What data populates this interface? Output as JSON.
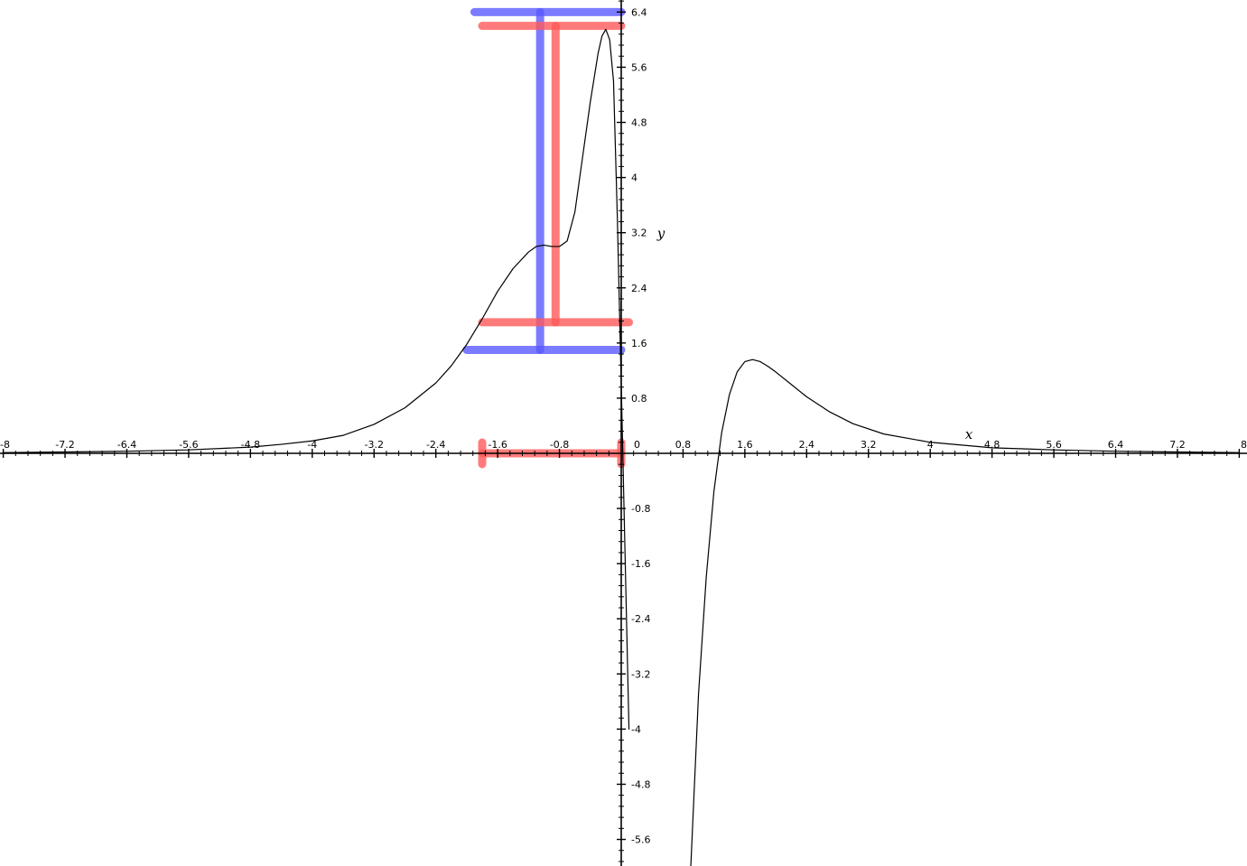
{
  "chart_data": {
    "type": "line",
    "title": "",
    "xlabel": "x",
    "ylabel": "y",
    "xlim": [
      -8,
      8
    ],
    "ylim": [
      -5.95,
      6.55
    ],
    "grid": false,
    "x_tick_labels": [
      "-8",
      "-7.2",
      "-6.4",
      "-5.6",
      "-4.8",
      "-4",
      "-3.2",
      "-2.4",
      "-1.6",
      "-0.8",
      "0",
      "0.8",
      "1.6",
      "2.4",
      "3.2",
      "4",
      "4.8",
      "5.6",
      "6.4",
      "7.2",
      "8"
    ],
    "y_tick_labels": [
      "-5.6",
      "-4.8",
      "-4",
      "-3.2",
      "-2.4",
      "-1.6",
      "-0.8",
      "0.8",
      "1.6",
      "2.4",
      "3.2",
      "4",
      "4.8",
      "5.6",
      "6.4"
    ],
    "series": [
      {
        "color": "#000000",
        "x": [
          -8,
          -7.2,
          -6.4,
          -5.6,
          -4.8,
          -4.4,
          -4,
          -3.6,
          -3.2,
          -2.8,
          -2.4,
          -2.2,
          -2,
          -1.8,
          -1.6,
          -1.4,
          -1.2,
          -1.1,
          -1.0,
          -0.9,
          -0.8,
          -0.7,
          -0.6,
          -0.5,
          -0.4,
          -0.3,
          -0.25,
          -0.2,
          -0.15,
          -0.1,
          -0.05,
          0.0,
          0.05,
          0.1
        ],
        "y": [
          0.01,
          0.02,
          0.03,
          0.05,
          0.09,
          0.13,
          0.18,
          0.26,
          0.42,
          0.66,
          1.02,
          1.27,
          1.58,
          1.95,
          2.35,
          2.68,
          2.92,
          3.0,
          3.02,
          3.0,
          3.0,
          3.08,
          3.5,
          4.3,
          5.1,
          5.8,
          6.05,
          6.15,
          6.0,
          5.4,
          3.4,
          1.0,
          -1.5,
          -4.0
        ]
      },
      {
        "color": "#000000",
        "x": [
          0.9,
          1.0,
          1.1,
          1.2,
          1.3,
          1.4,
          1.5,
          1.6,
          1.7,
          1.8,
          1.9,
          2.0,
          2.2,
          2.4,
          2.7,
          3.0,
          3.4,
          4.0,
          4.8,
          5.6,
          6.4,
          7.2,
          8
        ],
        "y": [
          -6.0,
          -3.5,
          -1.8,
          -0.55,
          0.3,
          0.85,
          1.18,
          1.33,
          1.36,
          1.33,
          1.26,
          1.18,
          1.0,
          0.82,
          0.6,
          0.43,
          0.28,
          0.16,
          0.08,
          0.05,
          0.03,
          0.02,
          0.01
        ]
      }
    ],
    "annotations": {
      "blue": {
        "color": "#5a5aff",
        "y_bars": [
          {
            "y": 6.4,
            "x_from": -1.9,
            "x_to": 0.0
          },
          {
            "y": 1.5,
            "x_from": -2.0,
            "x_to": 0.0
          }
        ],
        "vertical": {
          "x": -1.05,
          "y_from": 1.5,
          "y_to": 6.4
        }
      },
      "red": {
        "color": "#ff5a5a",
        "y_bars": [
          {
            "y": 6.2,
            "x_from": -1.8,
            "x_to": 0.0
          },
          {
            "y": 1.9,
            "x_from": -1.8,
            "x_to": 0.1
          }
        ],
        "vertical": {
          "x": -0.85,
          "y_from": 1.9,
          "y_to": 6.2
        },
        "x_interval": {
          "x_from": -1.8,
          "x_to": 0.0,
          "y": 0.0
        }
      }
    }
  }
}
